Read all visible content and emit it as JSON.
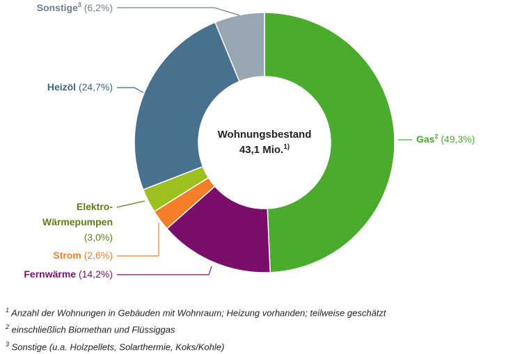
{
  "chart_data": {
    "type": "pie",
    "variant": "donut",
    "center_label": [
      "Wohnungsbestand",
      "43,1 Mio.",
      "1)"
    ],
    "slices": [
      {
        "key": "gas",
        "name": "Gas",
        "sup": "2",
        "value": 49.3,
        "value_label": "(49,3%)",
        "color": "#4aab2e"
      },
      {
        "key": "fernwaerme",
        "name": "Fernwärme",
        "sup": "",
        "value": 14.2,
        "value_label": "(14,2%)",
        "color": "#7a0f6b"
      },
      {
        "key": "strom",
        "name": "Strom",
        "sup": "",
        "value": 2.6,
        "value_label": "(2,6%)",
        "color": "#f47e29"
      },
      {
        "key": "elektro",
        "name": "Elektro-",
        "name2": "Wärmepumpen",
        "sup": "",
        "value": 3.0,
        "value_label": "(3,0%)",
        "color": "#9cc11e",
        "label_color": "#5f7d12"
      },
      {
        "key": "heizoel",
        "name": "Heizöl",
        "sup": "",
        "value": 24.7,
        "value_label": "(24,7%)",
        "color": "#47718f",
        "label_color": "#3d6482"
      },
      {
        "key": "sonstige",
        "name": "Sonstige",
        "sup": "3",
        "value": 6.2,
        "value_label": "(6,2%)",
        "color": "#98a6b1",
        "label_color": "#6f7f8b"
      }
    ]
  },
  "footnotes": [
    {
      "sup": "1",
      "text": "Anzahl der Wohnungen in Gebäuden mit Wohnraum; Heizung vorhanden; teilweise geschätzt"
    },
    {
      "sup": "2",
      "text": "einschließlich Biomethan und Flüssiggas"
    },
    {
      "sup": "3",
      "text": "Sonstige (u.a. Holzpellets, Solarthermie, Koks/Kohle)"
    }
  ]
}
